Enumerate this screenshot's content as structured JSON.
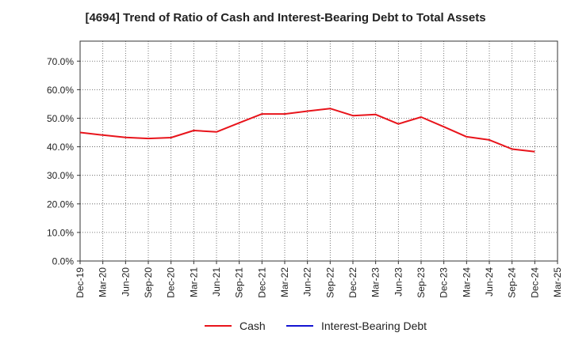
{
  "title": "[4694]  Trend of Ratio of Cash and Interest-Bearing Debt to Total Assets",
  "colors": {
    "cash": "#e8141b",
    "debt": "#1414d2",
    "grid": "#555555",
    "axis": "#333333"
  },
  "chart_data": {
    "type": "line",
    "title": "[4694]  Trend of Ratio of Cash and Interest-Bearing Debt to Total Assets",
    "x_tick_labels": [
      "Dec-19",
      "Mar-20",
      "Jun-20",
      "Sep-20",
      "Dec-20",
      "Mar-21",
      "Jun-21",
      "Sep-21",
      "Dec-21",
      "Mar-22",
      "Jun-22",
      "Sep-22",
      "Dec-22",
      "Mar-23",
      "Jun-23",
      "Sep-23",
      "Dec-23",
      "Mar-24",
      "Jun-24",
      "Sep-24",
      "Dec-24",
      "Mar-25"
    ],
    "y_tick_labels": [
      "0.0%",
      "10.0%",
      "20.0%",
      "30.0%",
      "40.0%",
      "50.0%",
      "60.0%",
      "70.0%"
    ],
    "ylim": [
      0,
      77
    ],
    "grid": true,
    "legend_position": "bottom",
    "series": [
      {
        "name": "Cash",
        "color": "#e8141b",
        "x": [
          "Dec-19",
          "Mar-20",
          "Jun-20",
          "Sep-20",
          "Dec-20",
          "Mar-21",
          "Jun-21",
          "Sep-21",
          "Dec-21",
          "Mar-22",
          "Jun-22",
          "Sep-22",
          "Dec-22",
          "Mar-23",
          "Jun-23",
          "Sep-23",
          "Dec-23",
          "Mar-24",
          "Jun-24",
          "Sep-24",
          "Dec-24"
        ],
        "values": [
          45.0,
          44.1,
          43.3,
          42.9,
          43.2,
          45.7,
          45.2,
          48.4,
          51.5,
          51.5,
          52.5,
          53.4,
          50.9,
          51.3,
          48.0,
          50.4,
          47.0,
          43.5,
          42.4,
          39.2,
          38.3
        ]
      },
      {
        "name": "Interest-Bearing Debt",
        "color": "#1414d2",
        "x": [],
        "values": []
      }
    ]
  }
}
